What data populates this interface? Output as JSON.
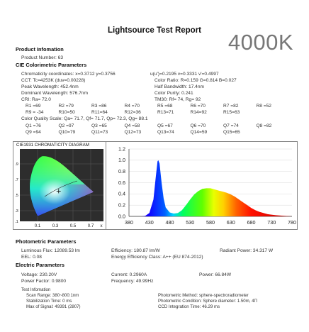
{
  "title": "Lightsource Test Report",
  "cct_badge": "4000K",
  "product_info": {
    "heading": "Product Infomation",
    "product_number": "Product Number: 63"
  },
  "cie": {
    "heading": "CIE Colorimetric Parameters",
    "chromaticity": "Chromaticity coordinates: x=0.3712 y=0.3756",
    "uv": "u(u')=0.2195 v=0.3331 v'=0.4997",
    "cct": "CCT: Tc=4253K (duv=0.00228)",
    "color_ratio": "Color Ratio: R=0.159  G=0.814  B=0.027",
    "peak_wavelength": "Peak Wavelength: 452.4nm",
    "half_bandwidth": "Half Bandwidth: 17.4nm",
    "dominant_wavelength": "Dominant Wavelength: 576.7nm",
    "color_purity": "Color Purity: 0.241",
    "cri": "CRI: Ra= 72.0",
    "tm30": "TM30: Rf=   74, Rg=   92",
    "ri_row1": [
      "R1 =69",
      "R2 =79",
      "R3 =86",
      "R4 =70",
      "R5 =68",
      "R6 =70",
      "R7 =82",
      "R8 =52"
    ],
    "ri_row2": [
      "R9 = -34",
      "R10=50",
      "R11=64",
      "R12=36",
      "R13=71",
      "R14=92",
      "R15=63"
    ],
    "cqs": "Color Quality Scale: Qa= 71.7, Qf= 71.7, Qp= 72.3, Qg= 88.1",
    "q_row1": [
      "Q1 =76",
      "Q2 =97",
      "Q3 =65",
      "Q4 =58",
      "Q5 =67",
      "Q6 =70",
      "Q7 =74",
      "Q8 =82"
    ],
    "q_row2": [
      "Q9 =94",
      "Q10=79",
      "Q11=73",
      "Q12=73",
      "Q13=74",
      "Q14=59",
      "Q15=65"
    ]
  },
  "cie_diagram": {
    "title": "CIE1931 CHROMATICITY DIAGRAM",
    "x_ticks": [
      "0.1",
      "0.3",
      "0.5",
      "0.7",
      "x"
    ],
    "y_ticks": [
      ".9",
      ".7",
      ".5",
      ".3",
      ".1"
    ],
    "marker_x": 0.3712,
    "marker_y": 0.3756
  },
  "chart_data": {
    "type": "line",
    "xlim": [
      380,
      780
    ],
    "ylim": [
      0,
      1.2
    ],
    "x_ticks": [
      "380",
      "430",
      "480",
      "530",
      "580",
      "630",
      "680",
      "730",
      "780"
    ],
    "y_ticks": [
      "1.2",
      "1.0",
      "0.8",
      "0.6",
      "0.4",
      "0.2",
      "0.0"
    ],
    "x": [
      380,
      410,
      420,
      430,
      440,
      445,
      450,
      452,
      455,
      460,
      465,
      470,
      480,
      490,
      500,
      510,
      520,
      530,
      540,
      550,
      560,
      570,
      580,
      590,
      600,
      610,
      620,
      630,
      640,
      650,
      660,
      670,
      680,
      690,
      700,
      720,
      740,
      760,
      780
    ],
    "values": [
      0.0,
      0.0,
      0.01,
      0.06,
      0.3,
      0.65,
      0.98,
      1.0,
      0.94,
      0.6,
      0.32,
      0.16,
      0.07,
      0.05,
      0.06,
      0.11,
      0.2,
      0.3,
      0.39,
      0.45,
      0.49,
      0.5,
      0.5,
      0.48,
      0.46,
      0.44,
      0.42,
      0.39,
      0.35,
      0.3,
      0.25,
      0.2,
      0.15,
      0.11,
      0.08,
      0.04,
      0.02,
      0.01,
      0.0
    ]
  },
  "photometric": {
    "heading": "Photometric Parameters",
    "luminous_flux": "Luminous Flux: 12089.53 lm",
    "efficiency": "Efficiency: 180.87 lm/W",
    "radiant_power": "Radiant Power: 34.317 W",
    "eel": "EEL: 0.08",
    "energy_class": "Energy Efficiency Class: A++ (EU 874-2012)"
  },
  "electric": {
    "heading": "Electric Parameters",
    "voltage": "Voltage: 230.20V",
    "current": "Current: 0.2960A",
    "power": "Power: 66.84W",
    "power_factor": "Power Factor: 0.9800",
    "frequency": "Frequency: 49.99Hz"
  },
  "test_info": {
    "heading": "Test Infomation",
    "scan_range": "Scan Range: 380~800:1nm",
    "stabilization": "Stabilization Time: 0 ms",
    "max_signal": "Max of Signal: 49391 (2807)",
    "method": "Photometric Method: sphere-spectroradiometer",
    "condition": "Photometric Condition: Sphere diameter: 1.50m, 4Π",
    "ccd_time": "CCD Integration Time: 46.29 ms"
  }
}
